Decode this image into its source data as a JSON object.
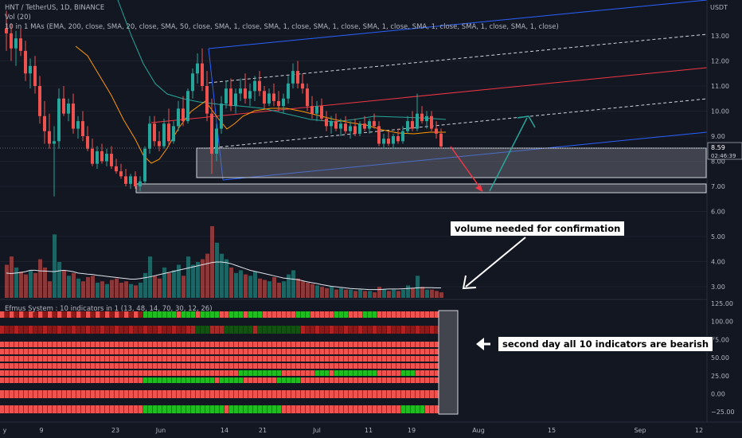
{
  "header": {
    "symbol": "HNT / TetherUS, 1D, BINANCE",
    "vol": "Vol (20)",
    "ma": "10 in 1 MAs (EMA, 200, close, SMA, 20, close, SMA, 50, close, SMA, 1, close, SMA, 1, close, SMA, 1, close, SMA, 1, close, SMA, 1, close, SMA, 1, close, SMA, 1, close)",
    "indicator": "Efmus System : 10 indicators in 1 (13, 48, 14, 70, 30, 12, 26)"
  },
  "notes": {
    "volume": "volume needed for confirmation",
    "bearish": "second day all 10 indicators are bearish"
  },
  "price_axis": {
    "unit": "USDT",
    "ticks": [
      "13.00",
      "12.00",
      "11.00",
      "10.00",
      "9.00",
      "8.00",
      "7.00",
      "6.00",
      "5.00",
      "4.00",
      "3.00"
    ],
    "current": "8.59",
    "countdown": "02:46:39"
  },
  "indicator_axis": {
    "ticks": [
      "125.00",
      "100.00",
      "75.00",
      "50.00",
      "25.00",
      "0.00",
      "−25.00"
    ]
  },
  "time_axis": {
    "labels": [
      "y",
      "9",
      "23",
      "Jun",
      "14",
      "21",
      "Jul",
      "11",
      "19",
      "Aug",
      "15",
      "Sep",
      "12"
    ]
  },
  "colors": {
    "bull": "#26a69a",
    "bear": "#ef5350",
    "ema200": "#26a69a",
    "sma20": "#ff9800",
    "channel_blue": "#2962ff",
    "channel_red": "#f23645",
    "bear_dark": "#8b1a1a",
    "bull_bright": "#1fbd1f"
  },
  "chart_data": {
    "type": "candlestick",
    "title": "HNT / TetherUS, 1D, BINANCE",
    "y_unit": "USDT",
    "ylim": [
      2.6,
      14.3
    ],
    "last_price": 8.59,
    "ohlc": [
      {
        "o": 13.3,
        "h": 14.0,
        "l": 12.4,
        "c": 13.1
      },
      {
        "o": 13.1,
        "h": 13.5,
        "l": 12.0,
        "c": 12.5
      },
      {
        "o": 12.5,
        "h": 13.2,
        "l": 11.8,
        "c": 12.9
      },
      {
        "o": 12.9,
        "h": 13.3,
        "l": 12.2,
        "c": 12.4
      },
      {
        "o": 12.4,
        "h": 12.8,
        "l": 11.2,
        "c": 11.5
      },
      {
        "o": 11.5,
        "h": 12.1,
        "l": 10.9,
        "c": 11.8
      },
      {
        "o": 11.8,
        "h": 12.2,
        "l": 10.7,
        "c": 11.0
      },
      {
        "o": 11.0,
        "h": 11.4,
        "l": 9.5,
        "c": 9.8
      },
      {
        "o": 9.8,
        "h": 10.4,
        "l": 8.7,
        "c": 9.2
      },
      {
        "o": 9.2,
        "h": 9.9,
        "l": 8.5,
        "c": 8.7
      },
      {
        "o": 8.7,
        "h": 9.4,
        "l": 6.6,
        "c": 8.8
      },
      {
        "o": 8.8,
        "h": 10.9,
        "l": 8.5,
        "c": 10.5
      },
      {
        "o": 10.5,
        "h": 11.0,
        "l": 9.8,
        "c": 9.9
      },
      {
        "o": 9.9,
        "h": 10.5,
        "l": 9.6,
        "c": 10.3
      },
      {
        "o": 10.3,
        "h": 10.7,
        "l": 9.1,
        "c": 9.3
      },
      {
        "o": 9.3,
        "h": 9.8,
        "l": 8.9,
        "c": 9.6
      },
      {
        "o": 9.6,
        "h": 10.0,
        "l": 8.8,
        "c": 9.0
      },
      {
        "o": 9.0,
        "h": 9.4,
        "l": 8.4,
        "c": 8.5
      },
      {
        "o": 8.5,
        "h": 8.9,
        "l": 7.8,
        "c": 7.9
      },
      {
        "o": 7.9,
        "h": 8.6,
        "l": 7.7,
        "c": 8.4
      },
      {
        "o": 8.4,
        "h": 8.7,
        "l": 7.9,
        "c": 8.0
      },
      {
        "o": 8.0,
        "h": 8.5,
        "l": 7.8,
        "c": 8.3
      },
      {
        "o": 8.3,
        "h": 8.6,
        "l": 7.7,
        "c": 7.8
      },
      {
        "o": 7.8,
        "h": 8.1,
        "l": 7.5,
        "c": 7.6
      },
      {
        "o": 7.6,
        "h": 7.9,
        "l": 7.3,
        "c": 7.4
      },
      {
        "o": 7.4,
        "h": 7.7,
        "l": 7.0,
        "c": 7.1
      },
      {
        "o": 7.1,
        "h": 7.5,
        "l": 6.9,
        "c": 7.4
      },
      {
        "o": 7.4,
        "h": 7.6,
        "l": 6.9,
        "c": 7.0
      },
      {
        "o": 7.0,
        "h": 7.4,
        "l": 6.8,
        "c": 7.2
      },
      {
        "o": 7.2,
        "h": 8.6,
        "l": 7.1,
        "c": 8.5
      },
      {
        "o": 8.5,
        "h": 9.8,
        "l": 8.3,
        "c": 9.5
      },
      {
        "o": 9.5,
        "h": 9.8,
        "l": 8.6,
        "c": 8.8
      },
      {
        "o": 8.8,
        "h": 9.2,
        "l": 8.4,
        "c": 8.6
      },
      {
        "o": 8.6,
        "h": 9.7,
        "l": 8.5,
        "c": 9.5
      },
      {
        "o": 9.5,
        "h": 10.1,
        "l": 8.6,
        "c": 8.8
      },
      {
        "o": 8.8,
        "h": 9.6,
        "l": 8.7,
        "c": 9.4
      },
      {
        "o": 9.4,
        "h": 10.4,
        "l": 9.2,
        "c": 10.1
      },
      {
        "o": 10.1,
        "h": 10.6,
        "l": 9.4,
        "c": 9.6
      },
      {
        "o": 9.6,
        "h": 10.9,
        "l": 9.5,
        "c": 10.8
      },
      {
        "o": 10.8,
        "h": 11.7,
        "l": 10.5,
        "c": 11.5
      },
      {
        "o": 11.5,
        "h": 12.3,
        "l": 11.1,
        "c": 11.9
      },
      {
        "o": 11.9,
        "h": 12.5,
        "l": 10.8,
        "c": 11.0
      },
      {
        "o": 11.0,
        "h": 11.6,
        "l": 9.6,
        "c": 9.9
      },
      {
        "o": 9.9,
        "h": 10.5,
        "l": 7.5,
        "c": 8.3
      },
      {
        "o": 8.3,
        "h": 9.5,
        "l": 8.0,
        "c": 9.3
      },
      {
        "o": 9.3,
        "h": 10.6,
        "l": 9.1,
        "c": 10.3
      },
      {
        "o": 10.3,
        "h": 11.2,
        "l": 10.1,
        "c": 10.9
      },
      {
        "o": 10.9,
        "h": 11.3,
        "l": 10.0,
        "c": 10.2
      },
      {
        "o": 10.2,
        "h": 10.9,
        "l": 9.9,
        "c": 10.7
      },
      {
        "o": 10.7,
        "h": 11.3,
        "l": 10.4,
        "c": 10.9
      },
      {
        "o": 10.9,
        "h": 11.5,
        "l": 10.3,
        "c": 10.5
      },
      {
        "o": 10.5,
        "h": 11.1,
        "l": 10.2,
        "c": 10.8
      },
      {
        "o": 10.8,
        "h": 11.4,
        "l": 10.4,
        "c": 11.2
      },
      {
        "o": 11.2,
        "h": 11.6,
        "l": 10.6,
        "c": 10.8
      },
      {
        "o": 10.8,
        "h": 11.0,
        "l": 10.1,
        "c": 10.3
      },
      {
        "o": 10.3,
        "h": 10.9,
        "l": 10.2,
        "c": 10.7
      },
      {
        "o": 10.7,
        "h": 11.1,
        "l": 10.2,
        "c": 10.4
      },
      {
        "o": 10.4,
        "h": 10.8,
        "l": 10.0,
        "c": 10.2
      },
      {
        "o": 10.2,
        "h": 10.7,
        "l": 9.9,
        "c": 10.5
      },
      {
        "o": 10.5,
        "h": 11.4,
        "l": 10.3,
        "c": 11.1
      },
      {
        "o": 11.1,
        "h": 11.9,
        "l": 10.9,
        "c": 11.6
      },
      {
        "o": 11.6,
        "h": 12.0,
        "l": 10.9,
        "c": 11.1
      },
      {
        "o": 11.1,
        "h": 11.5,
        "l": 10.7,
        "c": 10.9
      },
      {
        "o": 10.9,
        "h": 11.1,
        "l": 10.0,
        "c": 10.2
      },
      {
        "o": 10.2,
        "h": 10.6,
        "l": 9.7,
        "c": 9.9
      },
      {
        "o": 9.9,
        "h": 10.4,
        "l": 9.6,
        "c": 10.2
      },
      {
        "o": 10.2,
        "h": 10.5,
        "l": 9.6,
        "c": 9.7
      },
      {
        "o": 9.7,
        "h": 10.0,
        "l": 9.2,
        "c": 9.4
      },
      {
        "o": 9.4,
        "h": 9.8,
        "l": 9.1,
        "c": 9.6
      },
      {
        "o": 9.6,
        "h": 9.9,
        "l": 9.2,
        "c": 9.3
      },
      {
        "o": 9.3,
        "h": 9.7,
        "l": 9.0,
        "c": 9.5
      },
      {
        "o": 9.5,
        "h": 9.8,
        "l": 9.1,
        "c": 9.2
      },
      {
        "o": 9.2,
        "h": 9.6,
        "l": 8.9,
        "c": 9.4
      },
      {
        "o": 9.4,
        "h": 9.7,
        "l": 9.0,
        "c": 9.1
      },
      {
        "o": 9.1,
        "h": 9.6,
        "l": 9.0,
        "c": 9.5
      },
      {
        "o": 9.5,
        "h": 9.8,
        "l": 9.2,
        "c": 9.3
      },
      {
        "o": 9.3,
        "h": 9.7,
        "l": 9.1,
        "c": 9.6
      },
      {
        "o": 9.6,
        "h": 9.9,
        "l": 9.3,
        "c": 9.4
      },
      {
        "o": 9.4,
        "h": 9.6,
        "l": 8.6,
        "c": 8.7
      },
      {
        "o": 8.7,
        "h": 9.1,
        "l": 8.5,
        "c": 8.9
      },
      {
        "o": 8.9,
        "h": 9.2,
        "l": 8.6,
        "c": 8.7
      },
      {
        "o": 8.7,
        "h": 9.1,
        "l": 8.5,
        "c": 9.0
      },
      {
        "o": 9.0,
        "h": 9.3,
        "l": 8.7,
        "c": 8.8
      },
      {
        "o": 8.8,
        "h": 9.4,
        "l": 8.7,
        "c": 9.2
      },
      {
        "o": 9.2,
        "h": 9.8,
        "l": 9.1,
        "c": 9.6
      },
      {
        "o": 9.6,
        "h": 10.0,
        "l": 9.2,
        "c": 9.3
      },
      {
        "o": 9.3,
        "h": 10.7,
        "l": 9.2,
        "c": 9.9
      },
      {
        "o": 9.9,
        "h": 10.2,
        "l": 9.5,
        "c": 9.6
      },
      {
        "o": 9.6,
        "h": 10.0,
        "l": 9.3,
        "c": 9.8
      },
      {
        "o": 9.8,
        "h": 10.0,
        "l": 9.2,
        "c": 9.3
      },
      {
        "o": 9.3,
        "h": 9.6,
        "l": 8.9,
        "c": 9.1
      },
      {
        "o": 9.1,
        "h": 9.3,
        "l": 8.5,
        "c": 8.59
      }
    ],
    "volume": [
      120,
      150,
      110,
      95,
      85,
      100,
      90,
      140,
      110,
      60,
      230,
      130,
      100,
      80,
      90,
      70,
      60,
      75,
      80,
      55,
      60,
      50,
      65,
      70,
      55,
      60,
      50,
      45,
      55,
      90,
      150,
      80,
      70,
      110,
      90,
      100,
      120,
      80,
      150,
      120,
      130,
      140,
      160,
      260,
      200,
      160,
      140,
      110,
      90,
      100,
      85,
      80,
      95,
      70,
      65,
      60,
      75,
      55,
      60,
      85,
      100,
      70,
      60,
      55,
      50,
      45,
      40,
      35,
      40,
      30,
      35,
      30,
      30,
      25,
      30,
      25,
      25,
      20,
      40,
      30,
      25,
      30,
      25,
      30,
      45,
      35,
      80,
      40,
      30,
      30,
      25,
      20
    ],
    "volume_ma": [
      90,
      88,
      90,
      92,
      95,
      100,
      100,
      98,
      97,
      96,
      95,
      98,
      100,
      98,
      95,
      90,
      88,
      86,
      85,
      82,
      80,
      78,
      76,
      74,
      72,
      70,
      68,
      68,
      70,
      73,
      76,
      80,
      84,
      88,
      92,
      96,
      100,
      104,
      108,
      112,
      116,
      120,
      124,
      128,
      130,
      130,
      128,
      124,
      118,
      112,
      106,
      100,
      96,
      92,
      88,
      84,
      80,
      76,
      72,
      70,
      68,
      66,
      62,
      58,
      55,
      52,
      48,
      45,
      42,
      40,
      38,
      36,
      34,
      33,
      32,
      31,
      30,
      30,
      30,
      31,
      32,
      32,
      32,
      33,
      34,
      35,
      36,
      37,
      37,
      37,
      36,
      36
    ],
    "annotations": [
      "volume needed for confirmation",
      "second day all 10 indicators are bearish"
    ]
  }
}
